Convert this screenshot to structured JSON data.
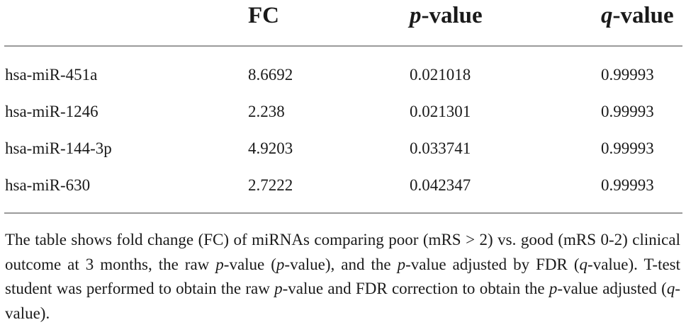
{
  "table": {
    "headers": {
      "fc": "FC",
      "p_italic": "p",
      "p_rest": "-value",
      "q_italic": "q",
      "q_rest": "-value"
    },
    "rows": [
      [
        "hsa-miR-451a",
        "8.6692",
        "0.021018",
        "0.99993"
      ],
      [
        "hsa-miR-1246",
        "2.238",
        "0.021301",
        "0.99993"
      ],
      [
        "hsa-miR-144-3p",
        "4.9203",
        "0.033741",
        "0.99993"
      ],
      [
        "hsa-miR-630",
        "2.7222",
        "0.042347",
        "0.99993"
      ]
    ]
  },
  "footnote": {
    "s1": "The table shows fold change (FC) of miRNAs comparing poor (mRS > 2) vs. good (mRS 0-2) clinical outcome at 3 months, the raw ",
    "i1": "p",
    "s2": "-value (",
    "i2": "p",
    "s3": "-value), and the ",
    "i3": "p",
    "s4": "-value adjusted by FDR (",
    "i4": "q",
    "s5": "-value). T-test student was performed to obtain the raw ",
    "i5": "p",
    "s6": "-value and FDR correction to obtain the ",
    "i6": "p",
    "s7": "-value adjusted (",
    "i7": "q",
    "s8": "-value)."
  }
}
